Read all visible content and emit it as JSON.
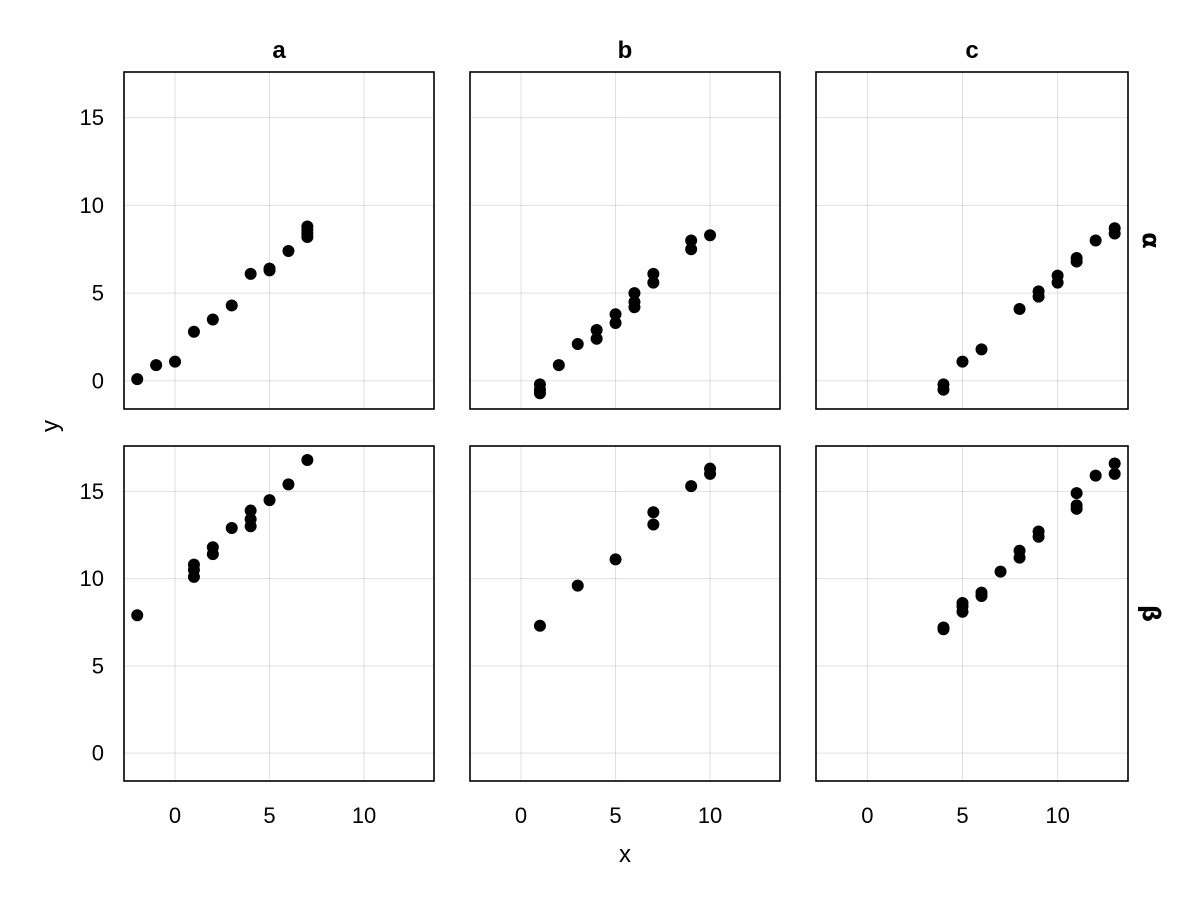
{
  "chart_data": {
    "type": "scatter",
    "xlabel": "x",
    "ylabel": "y",
    "xlim": [
      -2.7,
      13.7
    ],
    "ylim": [
      -1.6,
      17.6
    ],
    "xticks": [
      0,
      5,
      10
    ],
    "yticks": [
      0,
      5,
      10,
      15
    ],
    "grid": true,
    "marker_color": "#000000",
    "columns": [
      "a",
      "b",
      "c"
    ],
    "rows": [
      "α",
      "β"
    ],
    "panels": [
      {
        "col": "a",
        "row": "α",
        "points": [
          [
            -2,
            0.1
          ],
          [
            -1,
            0.9
          ],
          [
            0,
            1.1
          ],
          [
            1,
            2.8
          ],
          [
            2,
            3.5
          ],
          [
            3,
            4.3
          ],
          [
            4,
            6.1
          ],
          [
            5,
            6.3
          ],
          [
            5,
            6.4
          ],
          [
            6,
            7.4
          ],
          [
            7,
            8.2
          ],
          [
            7,
            8.4
          ],
          [
            7,
            8.6
          ],
          [
            7,
            8.8
          ]
        ]
      },
      {
        "col": "b",
        "row": "α",
        "points": [
          [
            1,
            -0.7
          ],
          [
            1,
            -0.5
          ],
          [
            1,
            -0.2
          ],
          [
            2,
            0.9
          ],
          [
            3,
            2.1
          ],
          [
            4,
            2.4
          ],
          [
            4,
            2.9
          ],
          [
            5,
            3.3
          ],
          [
            5,
            3.8
          ],
          [
            6,
            4.2
          ],
          [
            6,
            4.5
          ],
          [
            6,
            5.0
          ],
          [
            7,
            5.6
          ],
          [
            7,
            6.1
          ],
          [
            9,
            7.5
          ],
          [
            9,
            8.0
          ],
          [
            10,
            8.3
          ]
        ]
      },
      {
        "col": "c",
        "row": "α",
        "points": [
          [
            4,
            -0.5
          ],
          [
            4,
            -0.2
          ],
          [
            5,
            1.1
          ],
          [
            6,
            1.8
          ],
          [
            8,
            4.1
          ],
          [
            9,
            4.8
          ],
          [
            9,
            5.1
          ],
          [
            10,
            5.6
          ],
          [
            10,
            6.0
          ],
          [
            11,
            6.8
          ],
          [
            11,
            7.0
          ],
          [
            12,
            8.0
          ],
          [
            13,
            8.4
          ],
          [
            13,
            8.7
          ]
        ]
      },
      {
        "col": "a",
        "row": "β",
        "points": [
          [
            -2,
            7.9
          ],
          [
            1,
            10.1
          ],
          [
            1,
            10.5
          ],
          [
            1,
            10.8
          ],
          [
            2,
            11.4
          ],
          [
            2,
            11.8
          ],
          [
            3,
            12.9
          ],
          [
            4,
            13.0
          ],
          [
            4,
            13.4
          ],
          [
            4,
            13.9
          ],
          [
            5,
            14.5
          ],
          [
            6,
            15.4
          ],
          [
            7,
            16.8
          ]
        ]
      },
      {
        "col": "b",
        "row": "β",
        "points": [
          [
            1,
            7.3
          ],
          [
            3,
            9.6
          ],
          [
            5,
            11.1
          ],
          [
            7,
            13.1
          ],
          [
            7,
            13.8
          ],
          [
            9,
            15.3
          ],
          [
            10,
            16.0
          ],
          [
            10,
            16.3
          ]
        ]
      },
      {
        "col": "c",
        "row": "β",
        "points": [
          [
            4,
            7.1
          ],
          [
            4,
            7.2
          ],
          [
            5,
            8.1
          ],
          [
            5,
            8.4
          ],
          [
            5,
            8.6
          ],
          [
            6,
            9.0
          ],
          [
            6,
            9.2
          ],
          [
            7,
            10.4
          ],
          [
            8,
            11.2
          ],
          [
            8,
            11.6
          ],
          [
            9,
            12.4
          ],
          [
            9,
            12.7
          ],
          [
            11,
            14.0
          ],
          [
            11,
            14.2
          ],
          [
            11,
            14.9
          ],
          [
            12,
            15.9
          ],
          [
            13,
            16.0
          ],
          [
            13,
            16.6
          ]
        ]
      }
    ]
  }
}
